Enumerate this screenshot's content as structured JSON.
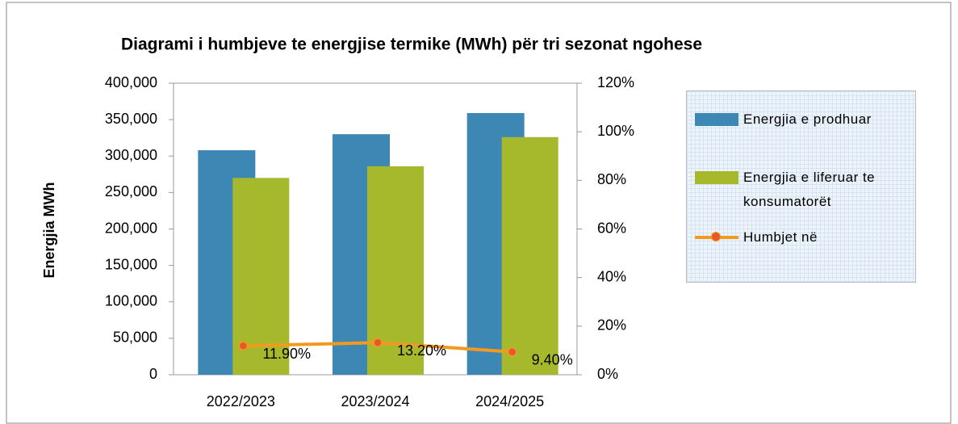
{
  "chart_data": {
    "type": "bar",
    "title": "Diagrami i humbjeve te energjise termike (MWh) për tri sezonat ngohese",
    "y_label": "Energjia MWh",
    "categories": [
      "2022/2023",
      "2023/2024",
      "2024/2025"
    ],
    "series": [
      {
        "name": "Energjia e prodhuar",
        "color": "#3d87b5",
        "values": [
          308000,
          330000,
          359000
        ]
      },
      {
        "name": "Energjia e liferuar te konsumatorët",
        "color": "#a6b92c",
        "values": [
          270000,
          286000,
          326000
        ]
      },
      {
        "name": "Humbjet në",
        "color": "#f29a1f",
        "type": "line",
        "axis": "y2",
        "values": [
          11.9,
          13.2,
          9.4
        ],
        "value_labels": [
          "11.90%",
          "13.20%",
          "9.40%"
        ]
      }
    ],
    "ylim": [
      0,
      400000
    ],
    "yticks": [
      {
        "value": 0,
        "label": "0"
      },
      {
        "value": 50000,
        "label": "50,000"
      },
      {
        "value": 100000,
        "label": "100,000"
      },
      {
        "value": 150000,
        "label": "150,000"
      },
      {
        "value": 200000,
        "label": "200,000"
      },
      {
        "value": 250000,
        "label": "250,000"
      },
      {
        "value": 300000,
        "label": "300,000"
      },
      {
        "value": 350000,
        "label": "350,000"
      },
      {
        "value": 400000,
        "label": "400,000"
      }
    ],
    "y2lim": [
      0,
      120
    ],
    "y2ticks": [
      {
        "value": 0,
        "label": "0%"
      },
      {
        "value": 20,
        "label": "20%"
      },
      {
        "value": 40,
        "label": "40%"
      },
      {
        "value": 60,
        "label": "60%"
      },
      {
        "value": 80,
        "label": "80%"
      },
      {
        "value": 100,
        "label": "100%"
      },
      {
        "value": 120,
        "label": "120%"
      }
    ],
    "grid": false,
    "legend": "right"
  }
}
